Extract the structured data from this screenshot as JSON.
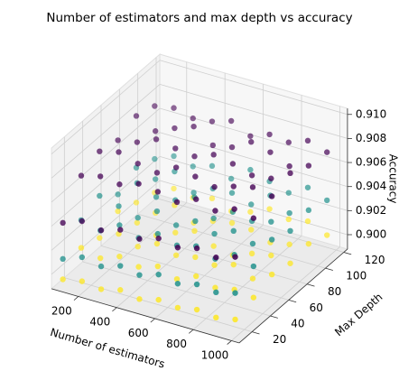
{
  "chart_data": {
    "type": "scatter3d",
    "title": "Number of estimators and max depth vs accuracy",
    "xlabel": "Number of estimators",
    "ylabel": "Max Depth",
    "zlabel": "Accuracy",
    "xlim": [
      60,
      1040
    ],
    "ylim": [
      6,
      124
    ],
    "zlim": [
      0.8988,
      0.9105
    ],
    "xticks": [
      200,
      400,
      600,
      800,
      1000
    ],
    "yticks": [
      20,
      40,
      60,
      80,
      100,
      120
    ],
    "zticks": [
      {
        "value": 0.9,
        "label": "0.900"
      },
      0.902,
      0.904,
      0.906,
      0.908,
      {
        "value": 0.91,
        "label": "0.910"
      }
    ],
    "grid": true,
    "x": [
      100,
      100,
      100,
      100,
      100,
      100,
      200,
      200,
      200,
      200,
      200,
      200,
      300,
      300,
      300,
      300,
      300,
      300,
      400,
      400,
      400,
      400,
      400,
      400,
      500,
      500,
      500,
      500,
      500,
      500,
      600,
      600,
      600,
      600,
      600,
      600,
      700,
      700,
      700,
      700,
      700,
      700,
      800,
      800,
      800,
      800,
      800,
      800,
      900,
      900,
      900,
      900,
      900,
      900,
      1000,
      1000,
      1000,
      1000,
      1000,
      1000
    ],
    "y": [
      10,
      30,
      50,
      70,
      90,
      110,
      10,
      30,
      50,
      70,
      90,
      110,
      10,
      30,
      50,
      70,
      90,
      110,
      10,
      30,
      50,
      70,
      90,
      110,
      10,
      30,
      50,
      70,
      90,
      110,
      10,
      30,
      50,
      70,
      90,
      110,
      10,
      30,
      50,
      70,
      90,
      110,
      10,
      30,
      50,
      70,
      90,
      110,
      10,
      30,
      50,
      70,
      90,
      110,
      10,
      30,
      50,
      70,
      90,
      110
    ],
    "series": [
      {
        "color": "#440154",
        "values": [
          0.9042,
          0.9068,
          0.9075,
          0.9071,
          0.9078,
          0.9073,
          0.9048,
          0.9072,
          0.9079,
          0.9074,
          0.907,
          0.9076,
          0.9045,
          0.907,
          0.9074,
          0.9081,
          0.9077,
          0.9072,
          0.905,
          0.9075,
          0.9071,
          0.9078,
          0.9083,
          0.9074,
          0.9047,
          0.9073,
          0.908,
          0.9076,
          0.9072,
          0.9079,
          0.9052,
          0.9069,
          0.9077,
          0.9082,
          0.9075,
          0.9071,
          0.9049,
          0.9076,
          0.9073,
          0.9079,
          0.9084,
          0.9077,
          0.9053,
          0.9071,
          0.9078,
          0.9074,
          0.908,
          0.9075,
          0.905,
          0.9077,
          0.9082,
          0.9076,
          0.9073,
          0.9081,
          0.9055,
          0.9074,
          0.9079,
          0.9085,
          0.9078,
          0.9076
        ]
      },
      {
        "color": "#21918c",
        "values": [
          0.9012,
          0.9031,
          0.9038,
          0.9026,
          0.9035,
          0.9029,
          0.9018,
          0.9027,
          0.9034,
          0.904,
          0.903,
          0.9036,
          0.9015,
          0.9036,
          0.9029,
          0.9033,
          0.9041,
          0.9032,
          0.902,
          0.903,
          0.9039,
          0.9035,
          0.9028,
          0.9037,
          0.9017,
          0.9038,
          0.9032,
          0.9042,
          0.9036,
          0.9031,
          0.9022,
          0.9033,
          0.904,
          0.9029,
          0.9037,
          0.9043,
          0.9019,
          0.9037,
          0.9034,
          0.9039,
          0.9032,
          0.9038,
          0.9023,
          0.9031,
          0.9041,
          0.9036,
          0.9044,
          0.9033,
          0.9021,
          0.9039,
          0.9035,
          0.904,
          0.9034,
          0.9042,
          0.9025,
          0.9034,
          0.9043,
          0.9037,
          0.9041,
          0.9036
        ]
      },
      {
        "color": "#fde725",
        "values": [
          0.8995,
          0.9008,
          0.9003,
          0.9012,
          0.9006,
          0.9001,
          0.8998,
          0.9004,
          0.9011,
          0.9007,
          0.9002,
          0.9009,
          0.8996,
          0.901,
          0.9005,
          0.9001,
          0.9013,
          0.9006,
          0.9,
          0.9006,
          0.9012,
          0.9008,
          0.9003,
          0.901,
          0.8997,
          0.9011,
          0.9007,
          0.9014,
          0.9009,
          0.9004,
          0.9001,
          0.9005,
          0.901,
          0.9006,
          0.9012,
          0.9008,
          0.8999,
          0.9012,
          0.9008,
          0.9003,
          0.9011,
          0.9015,
          0.9002,
          0.9007,
          0.9013,
          0.9009,
          0.9005,
          0.9011,
          0.9,
          0.901,
          0.9006,
          0.9012,
          0.9008,
          0.9014,
          0.9003,
          0.9008,
          0.9014,
          0.901,
          0.9013,
          0.9007
        ]
      }
    ]
  }
}
